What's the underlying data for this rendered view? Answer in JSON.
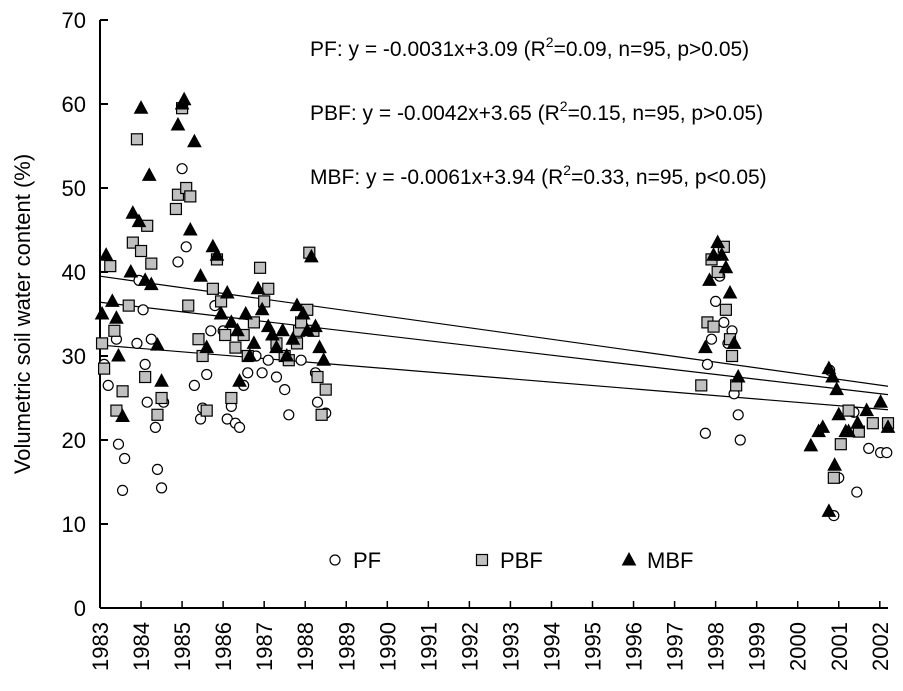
{
  "chart_data": {
    "type": "scatter",
    "y_label": "Volumetric soil water content (%)",
    "xlim": [
      1983,
      2002.2
    ],
    "ylim": [
      0,
      70
    ],
    "xticks": [
      1983,
      1984,
      1985,
      1986,
      1987,
      1988,
      1989,
      1990,
      1991,
      1992,
      1993,
      1994,
      1995,
      1996,
      1997,
      1998,
      1999,
      2000,
      2001,
      2002
    ],
    "yticks": [
      0,
      10,
      20,
      30,
      40,
      50,
      60,
      70
    ],
    "annotations": [
      {
        "text": "PF:  y = -0.0031x+3.09 (R",
        "sup": "2",
        "after": "=0.09, n=95, p>0.05)"
      },
      {
        "text": "PBF: y = -0.0042x+3.65 (R",
        "sup": "2",
        "after": "=0.15, n=95, p>0.05)"
      },
      {
        "text": "MBF: y = -0.0061x+3.94 (R",
        "sup": "2",
        "after": "=0.33, n=95, p<0.05)"
      }
    ],
    "series": [
      {
        "name": "PF",
        "marker": "circle",
        "color": "#ffffff",
        "x": [
          1983.1,
          1983.2,
          1983.4,
          1983.45,
          1983.55,
          1983.6,
          1983.9,
          1983.95,
          1984.05,
          1984.1,
          1984.15,
          1984.25,
          1984.35,
          1984.4,
          1984.5,
          1984.55,
          1984.9,
          1985.0,
          1985.1,
          1985.3,
          1985.45,
          1985.5,
          1985.6,
          1985.7,
          1985.8,
          1986.0,
          1986.1,
          1986.2,
          1986.3,
          1986.4,
          1986.5,
          1986.6,
          1986.8,
          1986.95,
          1987.1,
          1987.3,
          1987.5,
          1987.6,
          1987.8,
          1987.9,
          1988.1,
          1988.25,
          1988.3,
          1988.4,
          1988.5,
          1997.75,
          1997.8,
          1997.9,
          1998.0,
          1998.1,
          1998.2,
          1998.3,
          1998.4,
          1998.45,
          1998.55,
          1998.6,
          2000.78,
          2000.88,
          2001.0,
          2001.37,
          2001.44,
          2001.73,
          2002.02,
          2002.17
        ],
        "values": [
          29,
          26.5,
          32,
          19.5,
          14,
          17.8,
          31.5,
          39,
          35.5,
          29,
          24.5,
          32,
          21.5,
          16.5,
          14.3,
          24.5,
          41.2,
          52.3,
          43,
          26.5,
          22.5,
          23.8,
          27.8,
          33,
          36,
          33,
          22.5,
          24,
          22,
          21.5,
          26.5,
          28,
          30,
          28,
          29.5,
          27.5,
          26,
          23,
          32,
          29.5,
          33,
          28,
          24.5,
          23,
          23.2,
          20.8,
          29,
          32,
          36.5,
          39.5,
          34,
          31.5,
          33,
          25.5,
          23,
          20,
          28.3,
          11,
          15.5,
          23.3,
          13.8,
          19,
          18.5,
          18.5
        ],
        "trend": {
          "x": [
            1983,
            2002.2
          ],
          "values": [
            31.3,
            23.6
          ]
        }
      },
      {
        "name": "PBF",
        "marker": "square",
        "color": "#c0c0c0",
        "x": [
          1983.05,
          1983.1,
          1983.25,
          1983.35,
          1983.4,
          1983.55,
          1983.7,
          1983.8,
          1983.9,
          1984.0,
          1984.1,
          1984.15,
          1984.25,
          1984.4,
          1984.5,
          1984.85,
          1984.9,
          1985.0,
          1985.1,
          1985.2,
          1985.15,
          1985.4,
          1985.5,
          1985.6,
          1985.75,
          1985.85,
          1985.95,
          1986.05,
          1986.2,
          1986.3,
          1986.5,
          1986.6,
          1986.75,
          1986.9,
          1987.0,
          1987.1,
          1987.3,
          1987.5,
          1987.6,
          1987.8,
          1987.85,
          1987.9,
          1988.05,
          1988.1,
          1988.2,
          1988.3,
          1988.4,
          1988.5,
          1997.65,
          1997.8,
          1997.9,
          1997.95,
          1998.05,
          1998.2,
          1998.25,
          1998.35,
          1998.4,
          1998.5,
          2000.88,
          2001.05,
          2001.24,
          2001.49,
          2001.83,
          2002.2
        ],
        "values": [
          31.5,
          28.5,
          40.7,
          33,
          23.5,
          25.8,
          36,
          43.5,
          55.8,
          42.5,
          27.5,
          45.5,
          41,
          23,
          25,
          47.5,
          49.2,
          59.5,
          50,
          49,
          36,
          32,
          30,
          23.5,
          38,
          41.5,
          36.5,
          32.5,
          25,
          31,
          32.5,
          30,
          34,
          40.5,
          36.5,
          38,
          31.5,
          30,
          29.5,
          31.5,
          33,
          34,
          35.5,
          42.3,
          33,
          27.5,
          23,
          26,
          26.5,
          34,
          41.5,
          33.5,
          40,
          43,
          35.5,
          32,
          30,
          26.5,
          15.5,
          19.5,
          23.5,
          21,
          22,
          22
        ],
        "trend": {
          "x": [
            1983,
            2002.2
          ],
          "values": [
            36.4,
            25.4
          ]
        }
      },
      {
        "name": "MBF",
        "marker": "triangle",
        "color": "#000000",
        "x": [
          1983.05,
          1983.15,
          1983.3,
          1983.4,
          1983.45,
          1983.55,
          1983.75,
          1983.8,
          1983.95,
          1984.0,
          1984.1,
          1984.2,
          1984.25,
          1984.4,
          1984.5,
          1984.9,
          1985.0,
          1985.05,
          1985.2,
          1985.3,
          1985.45,
          1985.6,
          1985.75,
          1985.85,
          1985.95,
          1986.1,
          1986.2,
          1986.35,
          1986.4,
          1986.55,
          1986.65,
          1986.75,
          1986.85,
          1986.95,
          1987.1,
          1987.2,
          1987.3,
          1987.45,
          1987.55,
          1987.7,
          1987.8,
          1987.95,
          1988.05,
          1988.15,
          1988.25,
          1988.35,
          1988.45,
          1997.75,
          1997.85,
          1997.95,
          1998.05,
          1998.15,
          1998.25,
          1998.35,
          1998.45,
          1998.55,
          2000.32,
          2000.51,
          2000.61,
          2000.76,
          2000.85,
          2000.95,
          2001.0,
          2001.17,
          2000.76,
          2000.9,
          2001.24,
          2001.46,
          2001.68,
          2002.02,
          2002.2
        ],
        "values": [
          35,
          42,
          36.5,
          34.5,
          30,
          22.8,
          40,
          47,
          46,
          59.5,
          39,
          51.5,
          38.5,
          31.3,
          27,
          57.5,
          60,
          60.5,
          45,
          55.5,
          39.5,
          31,
          43,
          42,
          35,
          37.5,
          34,
          33,
          27,
          35,
          30,
          31.5,
          38,
          35.5,
          33.5,
          32.5,
          31,
          33,
          30,
          32,
          36,
          35,
          33,
          41.8,
          33.5,
          31,
          29.5,
          31,
          39,
          42,
          43.5,
          42,
          40.5,
          37.5,
          31.5,
          27.5,
          19.3,
          21,
          21.5,
          28.5,
          27.5,
          26,
          23,
          21,
          11.5,
          17,
          21,
          22,
          23.5,
          24.5,
          21.5
        ],
        "trend": {
          "x": [
            1983,
            2002.2
          ],
          "values": [
            39.5,
            26.4
          ]
        }
      }
    ]
  }
}
